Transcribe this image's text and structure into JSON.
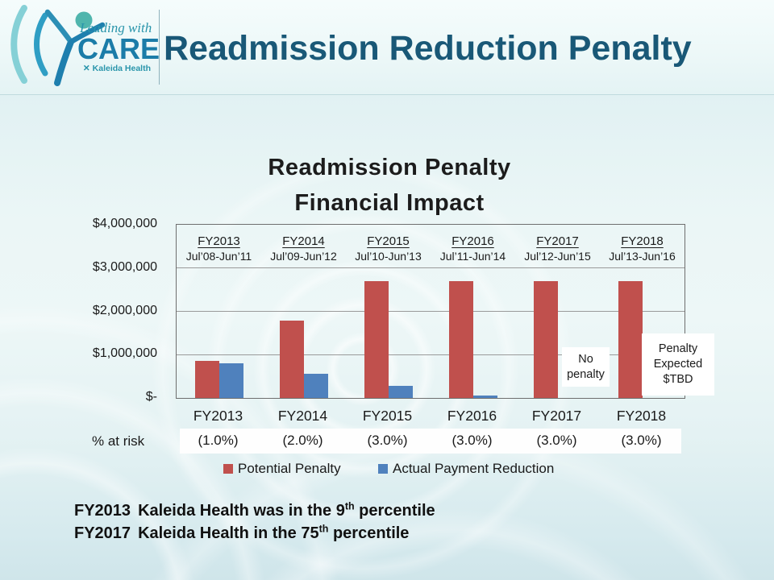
{
  "header": {
    "title": "Readmission Reduction Penalty",
    "logo": {
      "leading_with": "Leading with",
      "care": "CARE",
      "kaleida": "Kaleida Health"
    }
  },
  "chart_data": {
    "type": "bar",
    "title_lines": [
      "Readmission Penalty",
      "Financial Impact"
    ],
    "categories": [
      "FY2013",
      "FY2014",
      "FY2015",
      "FY2016",
      "FY2017",
      "FY2018"
    ],
    "period_labels": [
      "Jul’08-Jun’11",
      "Jul’09-Jun’12",
      "Jul’10-Jun’13",
      "Jul’11-Jun’14",
      "Jul’12-Jun’15",
      "Jul’13-Jun’16"
    ],
    "series": [
      {
        "name": "Potential Penalty",
        "color": "#C0504D",
        "values": [
          850000,
          1790000,
          2700000,
          2700000,
          2700000,
          2700000
        ]
      },
      {
        "name": "Actual Payment Reduction",
        "color": "#4F81BD",
        "values": [
          800000,
          560000,
          280000,
          55000,
          0,
          0
        ]
      }
    ],
    "ylim": [
      0,
      4000000
    ],
    "ytick_labels": [
      "$4,000,000",
      "$3,000,000",
      "$2,000,000",
      "$1,000,000",
      "$-"
    ],
    "pct_at_risk_label": "% at risk",
    "pct_at_risk": [
      "(1.0%)",
      "(2.0%)",
      "(3.0%)",
      "(3.0%)",
      "(3.0%)",
      "(3.0%)"
    ],
    "annotations": [
      {
        "category": "FY2017",
        "text_lines": [
          "No",
          "penalty"
        ]
      },
      {
        "category": "FY2018",
        "text_lines": [
          "Penalty",
          "Expected",
          "$TBD"
        ]
      }
    ],
    "legend_position": "bottom",
    "grid": true
  },
  "footer": {
    "lines": [
      {
        "fy": "FY2013",
        "text_before_sup": "Kaleida Health was in the 9",
        "sup": "th",
        "text_after_sup": " percentile"
      },
      {
        "fy": "FY2017",
        "text_before_sup": "Kaleida Health in the 75",
        "sup": "th",
        "text_after_sup": " percentile"
      }
    ]
  }
}
